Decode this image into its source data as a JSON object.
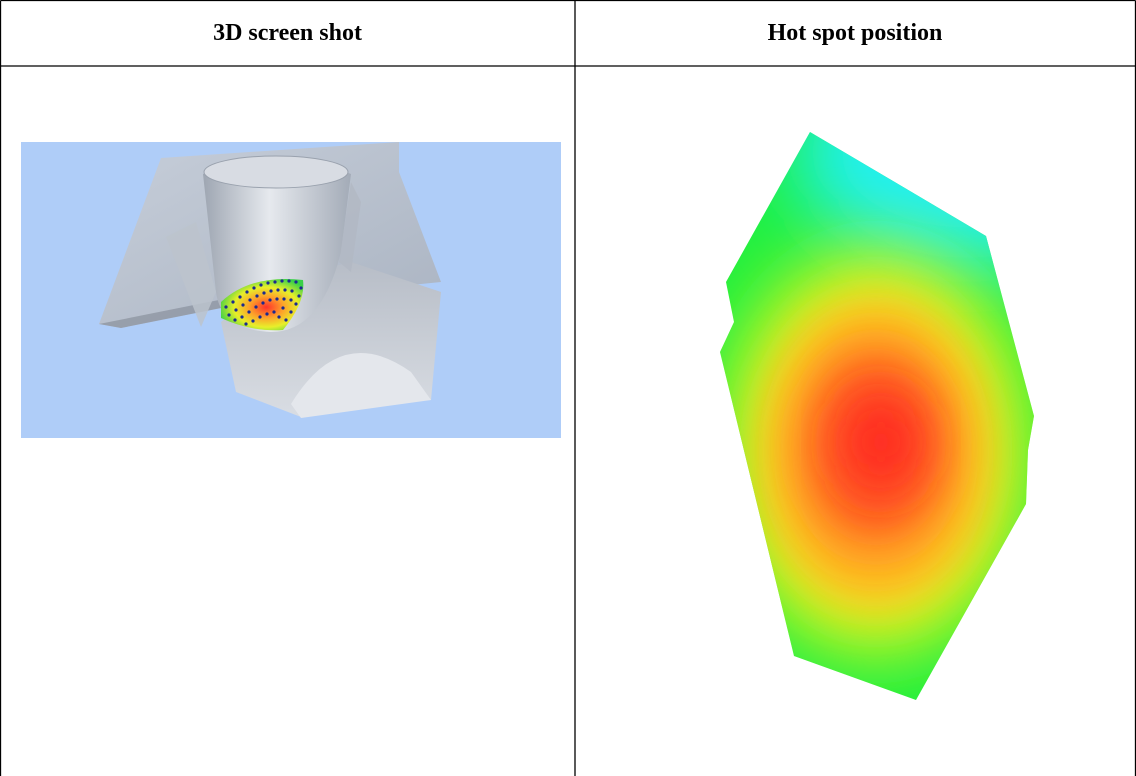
{
  "table": {
    "columns": [
      {
        "header": "3D screen shot"
      },
      {
        "header": "Hot spot position"
      }
    ]
  },
  "figures": {
    "screenshot": {
      "background_color": "#afcdf8",
      "model_color": "#c2c8d2",
      "icon": "3d-model-render"
    },
    "heatmap": {
      "icon": "hotspot-heatmap",
      "colors": {
        "hot": "#ff2a20",
        "warm": "#ffa020",
        "mid": "#f4f41e",
        "cool": "#1ef040",
        "cold": "#20f0f0"
      }
    }
  }
}
